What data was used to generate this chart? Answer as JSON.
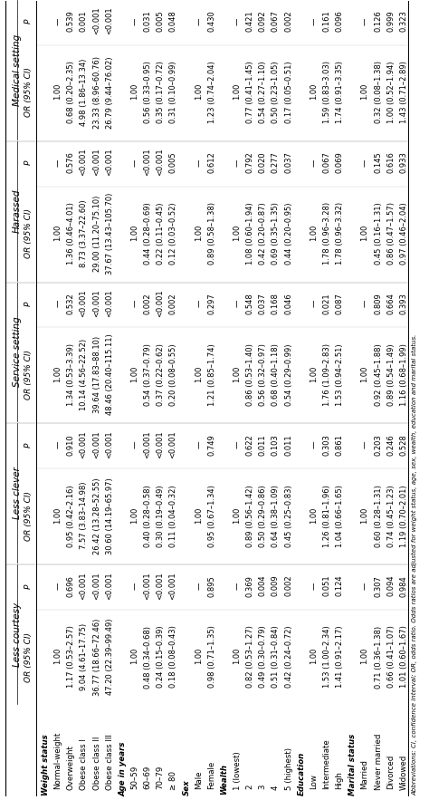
{
  "sections": [
    "Less courtesy",
    "Less clever",
    "Service setting",
    "Harassed",
    "Medical setting"
  ],
  "row_labels": [
    "Weight status",
    "Normal-weight",
    "Overweight",
    "Obese class I",
    "Obese class II",
    "Obese class III",
    "Age in years",
    "50–59",
    "60–69",
    "70–79",
    "≥ 80",
    "Sex",
    "Male",
    "Female",
    "Wealth",
    "1 (lowest)",
    "2",
    "3",
    "4",
    "5 (highest)",
    "Education",
    "Low",
    "Intermediate",
    "High",
    "Marital status",
    "Married",
    "Never married",
    "Divorced",
    "Widowed"
  ],
  "row_is_header": [
    true,
    false,
    false,
    false,
    false,
    false,
    true,
    false,
    false,
    false,
    false,
    true,
    false,
    false,
    true,
    false,
    false,
    false,
    false,
    false,
    true,
    false,
    false,
    false,
    true,
    false,
    false,
    false,
    false
  ],
  "less_courtesy_or": [
    "",
    "1.00",
    "1.17 (0.53–2.57)",
    "9.04 (4.61–17.75)",
    "36.77 (18.66–72.46)",
    "47.20 (22.39–99.49)",
    "",
    "1.00",
    "0.48 (0.34–0.68)",
    "0.24 (0.15–0.39)",
    "0.18 (0.08–0.43)",
    "",
    "1.00",
    "0.98 (0.71–1.35)",
    "",
    "1.00",
    "0.82 (0.53–1.27)",
    "0.49 (0.30–0.79)",
    "0.51 (0.31–0.84)",
    "0.42 (0.24–0.72)",
    "",
    "1.00",
    "1.53 (1.00–2.34)",
    "1.41 (0.91–2.17)",
    "",
    "1.00",
    "0.71 (0.36–1.38)",
    "0.66 (0.41–1.07)",
    "1.01 (0.60–1.67)"
  ],
  "less_courtesy_p": [
    "",
    "—",
    "0.696",
    "<0.001",
    "<0.001",
    "<0.001",
    "",
    "—",
    "<0.001",
    "<0.001",
    "<0.001",
    "",
    "—",
    "0.895",
    "",
    "—",
    "0.369",
    "0.004",
    "0.009",
    "0.002",
    "",
    "—",
    "0.051",
    "0.124",
    "",
    "—",
    "0.307",
    "0.094",
    "0.984"
  ],
  "less_clever_or": [
    "",
    "1.00",
    "0.95 (0.42–2.16)",
    "7.57 (3.83–14.98)",
    "26.42 (13.28–52.55)",
    "30.60 (14.19–65.97)",
    "",
    "1.00",
    "0.40 (0.28–0.58)",
    "0.30 (0.19–0.49)",
    "0.11 (0.04–0.32)",
    "",
    "1.00",
    "0.95 (0.67–1.34)",
    "",
    "1.00",
    "0.89 (0.56–1.42)",
    "0.50 (0.29–0.86)",
    "0.64 (0.38–1.09)",
    "0.45 (0.25–0.83)",
    "",
    "1.00",
    "1.26 (0.81–1.96)",
    "1.04 (0.66–1.65)",
    "",
    "1.00",
    "0.60 (0.28–1.31)",
    "0.74 (0.45–1.23)",
    "1.19 (0.70–2.01)"
  ],
  "less_clever_p": [
    "",
    "—",
    "0.910",
    "<0.001",
    "<0.001",
    "<0.001",
    "",
    "—",
    "<0.001",
    "<0.001",
    "<0.001",
    "",
    "—",
    "0.749",
    "",
    "—",
    "0.622",
    "0.011",
    "0.103",
    "0.011",
    "",
    "—",
    "0.303",
    "0.861",
    "",
    "—",
    "0.203",
    "0.246",
    "0.528"
  ],
  "service_or": [
    "",
    "1.00",
    "1.34 (0.53–3.39)",
    "10.14 (4.56–22.52)",
    "39.64 (17.83–88.10)",
    "48.46 (20.40–115.11)",
    "",
    "1.00",
    "0.54 (0.37–0.79)",
    "0.37 (0.22–0.62)",
    "0.20 (0.08–0.55)",
    "",
    "1.00",
    "1.21 (0.85–1.74)",
    "",
    "1.00",
    "0.86 (0.53–1.40)",
    "0.56 (0.32–0.97)",
    "0.68 (0.40–1.18)",
    "0.54 (0.29–0.99)",
    "",
    "1.00",
    "1.76 (1.09–2.83)",
    "1.53 (0.94–2.51)",
    "",
    "1.00",
    "0.92 (0.45–1.88)",
    "0.89 (0.54–1.49)",
    "1.16 (0.68–1.99)"
  ],
  "service_p": [
    "",
    "—",
    "0.532",
    "<0.001",
    "<0.001",
    "<0.001",
    "",
    "—",
    "0.002",
    "<0.001",
    "0.002",
    "",
    "—",
    "0.297",
    "",
    "—",
    "0.548",
    "0.037",
    "0.168",
    "0.046",
    "",
    "—",
    "0.021",
    "0.087",
    "",
    "—",
    "0.809",
    "0.664",
    "0.393"
  ],
  "harassed_or": [
    "",
    "1.00",
    "1.36 (0.46–4.01)",
    "8.73 (3.37–22.60)",
    "29.00 (11.20–75.10)",
    "37.67 (13.43–105.70)",
    "",
    "1.00",
    "0.44 (0.28–0.69)",
    "0.22 (0.11–0.45)",
    "0.12 (0.03–0.52)",
    "",
    "1.00",
    "0.89 (0.58–1.38)",
    "",
    "1.00",
    "1.08 (0.60–1.94)",
    "0.42 (0.20–0.87)",
    "0.69 (0.35–1.35)",
    "0.44 (0.20–0.95)",
    "",
    "1.00",
    "1.78 (0.96–3.28)",
    "1.78 (0.96–3.32)",
    "",
    "1.00",
    "0.45 (0.16–1.31)",
    "0.86 (0.47–1.57)",
    "0.97 (0.46–2.04)"
  ],
  "harassed_p": [
    "",
    "—",
    "0.576",
    "<0.001",
    "<0.001",
    "<0.001",
    "",
    "—",
    "<0.001",
    "<0.001",
    "0.005",
    "",
    "—",
    "0.612",
    "",
    "—",
    "0.792",
    "0.020",
    "0.277",
    "0.037",
    "",
    "—",
    "0.067",
    "0.069",
    "",
    "—",
    "0.145",
    "0.616",
    "0.933"
  ],
  "medical_or": [
    "",
    "1.00",
    "0.68 (0.20–2.35)",
    "4.98 (1.86–13.34)",
    "23.33 (8.96–60.76)",
    "26.79 (9.44–76.02)",
    "",
    "1.00",
    "0.56 (0.33–0.95)",
    "0.35 (0.17–0.72)",
    "0.31 (0.10–0.99)",
    "",
    "1.00",
    "1.23 (0.74–2.04)",
    "",
    "1.00",
    "0.77 (0.41–1.45)",
    "0.54 (0.27–1.10)",
    "0.50 (0.23–1.05)",
    "0.17 (0.05–0.51)",
    "",
    "1.00",
    "1.59 (0.83–3.03)",
    "1.74 (0.91–3.35)",
    "",
    "1.00",
    "0.32 (0.08–1.38)",
    "1.00 (0.52–1.94)",
    "1.43 (0.71–2.89)"
  ],
  "medical_p": [
    "",
    "—",
    "0.539",
    "0.001",
    "<0.001",
    "<0.001",
    "",
    "—",
    "0.031",
    "0.005",
    "0.048",
    "",
    "—",
    "0.430",
    "",
    "—",
    "0.421",
    "0.092",
    "0.067",
    "0.002",
    "",
    "—",
    "0.161",
    "0.096",
    "",
    "—",
    "0.126",
    "0.999",
    "0.323"
  ],
  "footnote": "Abbreviations: CI, confidence interval; OR, odds ratio. Odds ratios are adjusted for weight status, age, sex, wealth, education and marital status."
}
